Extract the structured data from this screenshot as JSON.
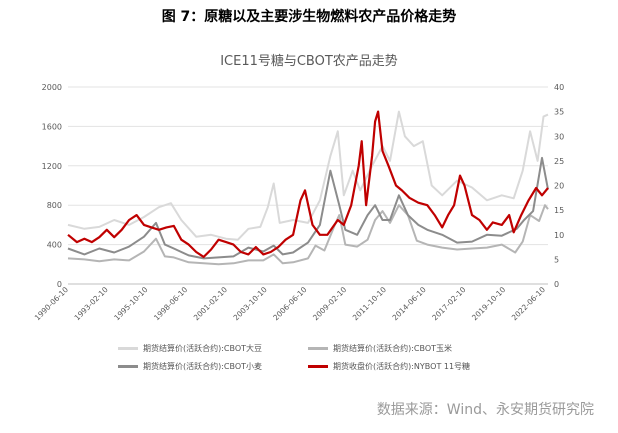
{
  "figure_title": "图 7：原糖以及主要涉生物燃料农产品价格走势",
  "source_note": "数据来源：Wind、永安期货研究院",
  "chart_data": {
    "type": "line",
    "title": "ICE11号糖与CBOT农产品走势",
    "x_ticks": [
      "1990-06-10",
      "1993-02-10",
      "1995-10-10",
      "1998-06-10",
      "2001-02-10",
      "2003-10-10",
      "2006-06-10",
      "2009-02-10",
      "2011-10-10",
      "2014-06-10",
      "2017-02-10",
      "2019-10-10",
      "2022-06-10"
    ],
    "y_left_ticks": [
      "0",
      "400",
      "800",
      "1200",
      "1600",
      "2000"
    ],
    "y_right_ticks": [
      "0",
      "5",
      "10",
      "15",
      "20",
      "25",
      "30",
      "35",
      "40"
    ],
    "ylim_left": [
      0,
      2000
    ],
    "ylim_right": [
      0,
      40
    ],
    "x_range": [
      1990.4,
      2022.6
    ],
    "series": [
      {
        "name": "期货结算价(活跃合约):CBOT大豆",
        "axis": "left",
        "color": "#d9d9d9",
        "points": [
          [
            1990.4,
            600
          ],
          [
            1991.5,
            560
          ],
          [
            1992.5,
            580
          ],
          [
            1993.5,
            650
          ],
          [
            1994.5,
            600
          ],
          [
            1995.5,
            680
          ],
          [
            1996.5,
            780
          ],
          [
            1997.3,
            820
          ],
          [
            1998.0,
            650
          ],
          [
            1999.0,
            480
          ],
          [
            2000.0,
            500
          ],
          [
            2001.0,
            460
          ],
          [
            2001.8,
            450
          ],
          [
            2002.5,
            560
          ],
          [
            2003.3,
            580
          ],
          [
            2003.8,
            780
          ],
          [
            2004.2,
            1020
          ],
          [
            2004.6,
            620
          ],
          [
            2005.5,
            650
          ],
          [
            2006.5,
            620
          ],
          [
            2007.3,
            850
          ],
          [
            2008.0,
            1300
          ],
          [
            2008.5,
            1550
          ],
          [
            2008.9,
            900
          ],
          [
            2009.5,
            1150
          ],
          [
            2010.0,
            950
          ],
          [
            2010.8,
            1200
          ],
          [
            2011.5,
            1400
          ],
          [
            2012.0,
            1250
          ],
          [
            2012.6,
            1750
          ],
          [
            2013.0,
            1500
          ],
          [
            2013.6,
            1400
          ],
          [
            2014.2,
            1450
          ],
          [
            2014.8,
            1000
          ],
          [
            2015.5,
            900
          ],
          [
            2016.5,
            1050
          ],
          [
            2017.5,
            980
          ],
          [
            2018.5,
            850
          ],
          [
            2019.5,
            900
          ],
          [
            2020.3,
            870
          ],
          [
            2020.9,
            1150
          ],
          [
            2021.4,
            1550
          ],
          [
            2021.9,
            1250
          ],
          [
            2022.3,
            1700
          ],
          [
            2022.6,
            1720
          ]
        ]
      },
      {
        "name": "期货结算价(活跃合约):CBOT玉米",
        "axis": "left",
        "color": "#b5b5b5",
        "points": [
          [
            1990.4,
            260
          ],
          [
            1991.5,
            250
          ],
          [
            1992.5,
            230
          ],
          [
            1993.5,
            250
          ],
          [
            1994.5,
            240
          ],
          [
            1995.5,
            330
          ],
          [
            1996.3,
            460
          ],
          [
            1996.9,
            280
          ],
          [
            1997.5,
            270
          ],
          [
            1998.5,
            220
          ],
          [
            1999.5,
            210
          ],
          [
            2000.5,
            200
          ],
          [
            2001.5,
            210
          ],
          [
            2002.5,
            240
          ],
          [
            2003.5,
            240
          ],
          [
            2004.2,
            300
          ],
          [
            2004.8,
            210
          ],
          [
            2005.5,
            220
          ],
          [
            2006.5,
            260
          ],
          [
            2007.0,
            390
          ],
          [
            2007.6,
            340
          ],
          [
            2008.3,
            600
          ],
          [
            2008.6,
            700
          ],
          [
            2009.0,
            400
          ],
          [
            2009.8,
            380
          ],
          [
            2010.5,
            450
          ],
          [
            2011.0,
            650
          ],
          [
            2011.5,
            740
          ],
          [
            2012.0,
            620
          ],
          [
            2012.6,
            800
          ],
          [
            2013.2,
            700
          ],
          [
            2013.8,
            440
          ],
          [
            2014.5,
            400
          ],
          [
            2015.5,
            370
          ],
          [
            2016.5,
            350
          ],
          [
            2017.5,
            360
          ],
          [
            2018.5,
            370
          ],
          [
            2019.5,
            400
          ],
          [
            2020.4,
            320
          ],
          [
            2020.9,
            430
          ],
          [
            2021.4,
            700
          ],
          [
            2022.0,
            640
          ],
          [
            2022.4,
            800
          ],
          [
            2022.6,
            760
          ]
        ]
      },
      {
        "name": "期货结算价(活跃合约):CBOT小麦",
        "axis": "left",
        "color": "#8c8c8c",
        "points": [
          [
            1990.4,
            360
          ],
          [
            1991.5,
            300
          ],
          [
            1992.5,
            360
          ],
          [
            1993.5,
            320
          ],
          [
            1994.5,
            380
          ],
          [
            1995.5,
            480
          ],
          [
            1996.3,
            620
          ],
          [
            1996.9,
            400
          ],
          [
            1997.5,
            360
          ],
          [
            1998.5,
            290
          ],
          [
            1999.5,
            260
          ],
          [
            2000.5,
            270
          ],
          [
            2001.5,
            280
          ],
          [
            2002.5,
            370
          ],
          [
            2003.5,
            330
          ],
          [
            2004.2,
            390
          ],
          [
            2004.8,
            300
          ],
          [
            2005.5,
            320
          ],
          [
            2006.5,
            420
          ],
          [
            2007.3,
            600
          ],
          [
            2008.0,
            1150
          ],
          [
            2008.6,
            800
          ],
          [
            2009.0,
            550
          ],
          [
            2009.8,
            500
          ],
          [
            2010.5,
            700
          ],
          [
            2011.0,
            800
          ],
          [
            2011.5,
            650
          ],
          [
            2012.0,
            650
          ],
          [
            2012.6,
            900
          ],
          [
            2013.2,
            700
          ],
          [
            2013.9,
            600
          ],
          [
            2014.5,
            550
          ],
          [
            2015.5,
            500
          ],
          [
            2016.5,
            420
          ],
          [
            2017.5,
            430
          ],
          [
            2018.5,
            500
          ],
          [
            2019.5,
            490
          ],
          [
            2020.5,
            560
          ],
          [
            2021.0,
            650
          ],
          [
            2021.6,
            740
          ],
          [
            2022.2,
            1280
          ],
          [
            2022.6,
            960
          ]
        ]
      },
      {
        "name": "期货收盘价(活跃合约):NYBOT 11号糖",
        "axis": "right",
        "color": "#c00000",
        "points": [
          [
            1990.4,
            10
          ],
          [
            1991.0,
            8.5
          ],
          [
            1991.5,
            9.2
          ],
          [
            1992.0,
            8.5
          ],
          [
            1992.5,
            9.5
          ],
          [
            1993.0,
            11
          ],
          [
            1993.5,
            9.5
          ],
          [
            1994.0,
            11
          ],
          [
            1994.5,
            13
          ],
          [
            1995.0,
            14
          ],
          [
            1995.5,
            12
          ],
          [
            1996.0,
            11.5
          ],
          [
            1996.5,
            11
          ],
          [
            1997.0,
            11.5
          ],
          [
            1997.5,
            11.8
          ],
          [
            1998.0,
            9
          ],
          [
            1998.5,
            8
          ],
          [
            1999.0,
            6.5
          ],
          [
            1999.5,
            5.5
          ],
          [
            2000.0,
            7
          ],
          [
            2000.5,
            9
          ],
          [
            2001.0,
            8.5
          ],
          [
            2001.5,
            8
          ],
          [
            2002.0,
            6.5
          ],
          [
            2002.5,
            6
          ],
          [
            2003.0,
            7.5
          ],
          [
            2003.5,
            6
          ],
          [
            2004.0,
            6.5
          ],
          [
            2004.5,
            7.5
          ],
          [
            2005.0,
            9
          ],
          [
            2005.5,
            10
          ],
          [
            2006.0,
            17
          ],
          [
            2006.3,
            19
          ],
          [
            2006.8,
            12
          ],
          [
            2007.3,
            10
          ],
          [
            2007.8,
            10
          ],
          [
            2008.5,
            13
          ],
          [
            2008.9,
            12
          ],
          [
            2009.4,
            16
          ],
          [
            2009.9,
            24
          ],
          [
            2010.1,
            29
          ],
          [
            2010.4,
            16
          ],
          [
            2010.8,
            26
          ],
          [
            2011.0,
            33
          ],
          [
            2011.2,
            35
          ],
          [
            2011.5,
            27
          ],
          [
            2011.9,
            24
          ],
          [
            2012.4,
            20
          ],
          [
            2012.8,
            19
          ],
          [
            2013.3,
            17.5
          ],
          [
            2013.9,
            16.5
          ],
          [
            2014.5,
            16
          ],
          [
            2015.0,
            14
          ],
          [
            2015.5,
            11.5
          ],
          [
            2015.9,
            14
          ],
          [
            2016.3,
            16
          ],
          [
            2016.7,
            22
          ],
          [
            2017.0,
            20
          ],
          [
            2017.5,
            14
          ],
          [
            2018.0,
            13
          ],
          [
            2018.5,
            11
          ],
          [
            2018.9,
            12.5
          ],
          [
            2019.5,
            12
          ],
          [
            2020.0,
            14
          ],
          [
            2020.3,
            10.5
          ],
          [
            2020.8,
            14
          ],
          [
            2021.3,
            17
          ],
          [
            2021.8,
            19.5
          ],
          [
            2022.2,
            18
          ],
          [
            2022.6,
            19.5
          ]
        ]
      }
    ]
  }
}
